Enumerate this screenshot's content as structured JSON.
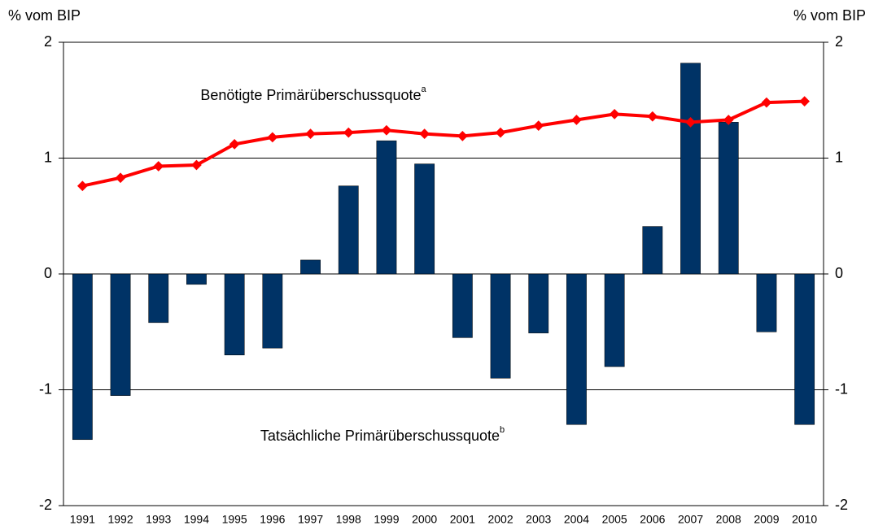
{
  "chart_data": {
    "type": "bar_line",
    "y_label": "% vom BIP",
    "y2_label": "% vom BIP",
    "categories": [
      "1991",
      "1992",
      "1993",
      "1994",
      "1995",
      "1996",
      "1997",
      "1998",
      "1999",
      "2000",
      "2001",
      "2002",
      "2003",
      "2004",
      "2005",
      "2006",
      "2007",
      "2008",
      "2009",
      "2010"
    ],
    "series": [
      {
        "name": "Tatsächliche Primärüberschussquote",
        "superscript": "b",
        "kind": "bar",
        "color": "#003366",
        "values": [
          -1.43,
          -1.05,
          -0.42,
          -0.09,
          -0.7,
          -0.64,
          0.12,
          0.76,
          1.15,
          0.95,
          -0.55,
          -0.9,
          -0.51,
          -1.3,
          -0.8,
          0.41,
          1.82,
          1.31,
          -0.5,
          -1.3
        ]
      },
      {
        "name": "Benötigte Primärüberschussquote",
        "superscript": "a",
        "kind": "line",
        "color": "#ff0000",
        "values": [
          0.76,
          0.83,
          0.93,
          0.94,
          1.12,
          1.18,
          1.21,
          1.22,
          1.24,
          1.21,
          1.19,
          1.22,
          1.28,
          1.33,
          1.38,
          1.36,
          1.31,
          1.33,
          1.48,
          1.49
        ]
      }
    ],
    "ylim": [
      -2,
      2
    ],
    "yticks": [
      -2,
      -1,
      0,
      1,
      2
    ],
    "y2lim": [
      -2,
      2
    ],
    "y2ticks": [
      -2,
      -1,
      0,
      1,
      2
    ],
    "grid": true
  }
}
